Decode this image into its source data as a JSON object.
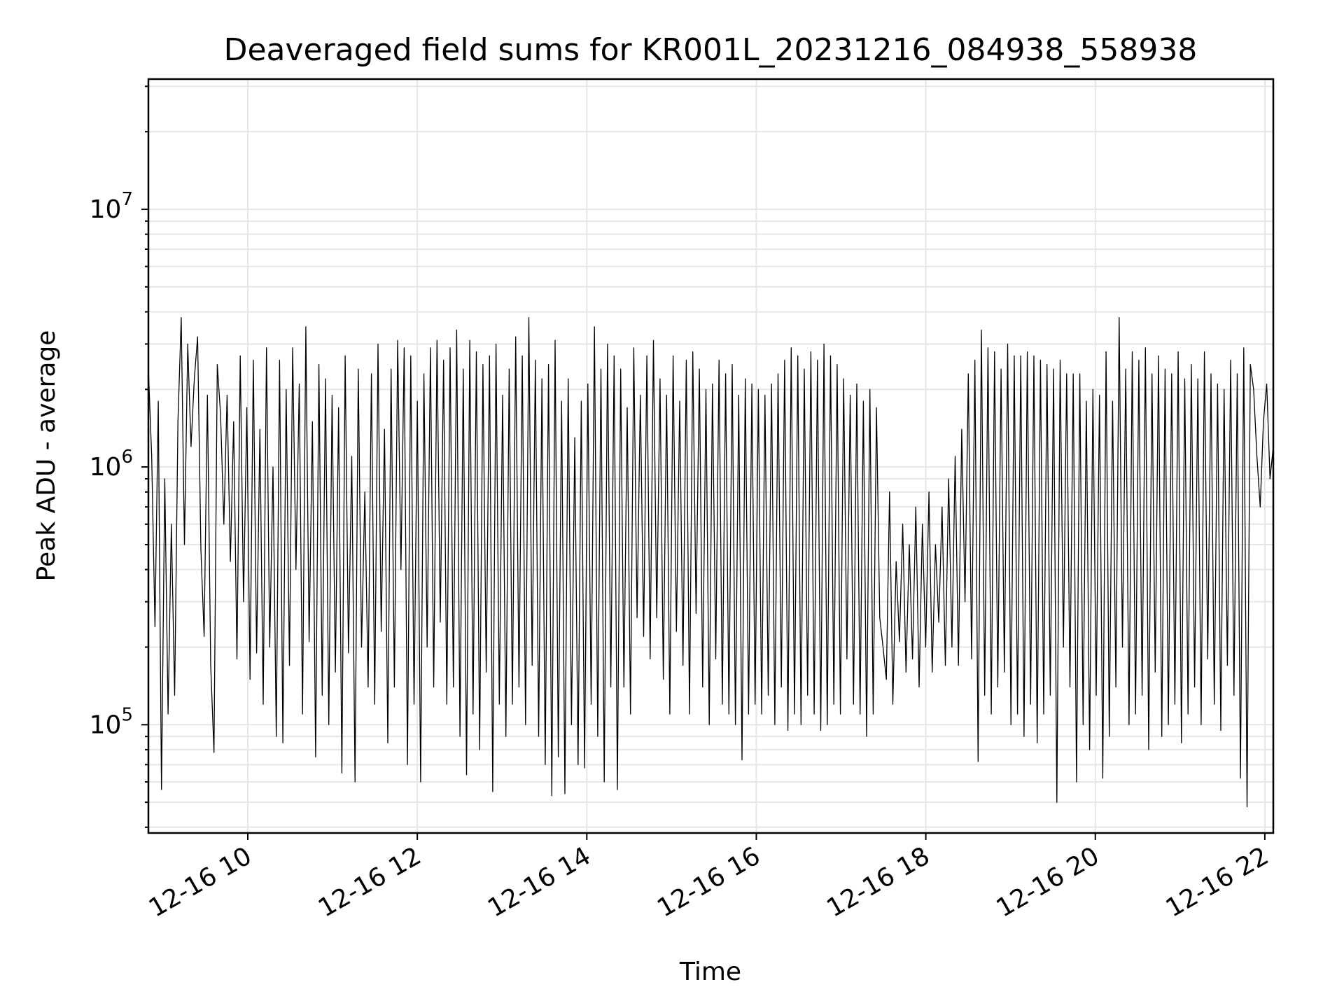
{
  "chart_data": {
    "type": "line",
    "title": "Deaveraged field sums for KR001L_20231216_084938_558938",
    "xlabel": "Time",
    "ylabel": "Peak ADU - average",
    "yscale": "log",
    "grid": true,
    "xlim": [
      "2023-12-16 08:49:38",
      "2023-12-16 22:06"
    ],
    "ylim": [
      38000,
      32000000
    ],
    "x_ticks": [
      "12-16 10",
      "12-16 12",
      "12-16 14",
      "12-16 16",
      "12-16 18",
      "12-16 20",
      "12-16 22"
    ],
    "y_ticks": [
      {
        "base": "10",
        "exp": "5",
        "value": 100000
      },
      {
        "base": "10",
        "exp": "6",
        "value": 1000000
      },
      {
        "base": "10",
        "exp": "7",
        "value": 10000000
      }
    ],
    "series": [
      {
        "color": "#000000",
        "x_start": "2023-12-16 08:49:38",
        "x_end": "2023-12-16 22:06:00",
        "values": [
          2400000,
          1100000,
          240000,
          1800000,
          56000,
          900000,
          110000,
          600000,
          130000,
          1500000,
          3800000,
          500000,
          3000000,
          1200000,
          2200000,
          3200000,
          480000,
          220000,
          1900000,
          170000,
          78000,
          2500000,
          1600000,
          600000,
          1900000,
          430000,
          1500000,
          180000,
          2700000,
          300000,
          1700000,
          150000,
          2600000,
          190000,
          1400000,
          120000,
          2900000,
          200000,
          1000000,
          90000,
          2600000,
          85000,
          2000000,
          170000,
          2900000,
          400000,
          2100000,
          110000,
          3500000,
          210000,
          1500000,
          75000,
          2500000,
          130000,
          2200000,
          100000,
          1900000,
          160000,
          1700000,
          65000,
          2700000,
          190000,
          1100000,
          60000,
          2400000,
          200000,
          800000,
          140000,
          2300000,
          120000,
          3000000,
          230000,
          1400000,
          85000,
          2400000,
          140000,
          3100000,
          400000,
          2900000,
          70000,
          2700000,
          120000,
          1800000,
          60000,
          2300000,
          200000,
          2900000,
          140000,
          3100000,
          250000,
          2600000,
          120000,
          2900000,
          140000,
          3400000,
          90000,
          2400000,
          64000,
          3100000,
          110000,
          2800000,
          80000,
          2500000,
          160000,
          2700000,
          55000,
          3000000,
          120000,
          1900000,
          90000,
          2400000,
          120000,
          3200000,
          140000,
          2700000,
          100000,
          3800000,
          170000,
          2600000,
          90000,
          2200000,
          70000,
          2500000,
          53000,
          3100000,
          75000,
          1800000,
          54000,
          2200000,
          100000,
          1300000,
          70000,
          1800000,
          68000,
          2100000,
          120000,
          3500000,
          90000,
          2400000,
          60000,
          3000000,
          140000,
          2700000,
          56000,
          2400000,
          140000,
          1700000,
          110000,
          2900000,
          260000,
          1900000,
          220000,
          2700000,
          180000,
          3100000,
          260000,
          2200000,
          150000,
          1900000,
          110000,
          2700000,
          230000,
          1800000,
          170000,
          2600000,
          110000,
          2800000,
          270000,
          2400000,
          140000,
          2000000,
          100000,
          2100000,
          180000,
          2600000,
          120000,
          2300000,
          110000,
          2500000,
          100000,
          1900000,
          73000,
          2200000,
          110000,
          2100000,
          120000,
          2000000,
          110000,
          1900000,
          130000,
          2100000,
          100000,
          2300000,
          140000,
          2600000,
          95000,
          2900000,
          110000,
          2700000,
          100000,
          2400000,
          130000,
          2800000,
          110000,
          2600000,
          95000,
          3000000,
          100000,
          2700000,
          120000,
          2500000,
          110000,
          2200000,
          180000,
          1900000,
          120000,
          2100000,
          110000,
          1800000,
          90000,
          2000000,
          110000,
          1700000,
          260000,
          200000,
          150000,
          800000,
          120000,
          430000,
          210000,
          600000,
          160000,
          500000,
          180000,
          700000,
          140000,
          600000,
          200000,
          800000,
          160000,
          500000,
          250000,
          700000,
          170000,
          900000,
          200000,
          1100000,
          170000,
          1400000,
          300000,
          2300000,
          180000,
          2600000,
          72000,
          3400000,
          130000,
          2900000,
          110000,
          2800000,
          140000,
          2400000,
          160000,
          3000000,
          100000,
          2700000,
          110000,
          2700000,
          90000,
          2800000,
          120000,
          2700000,
          85000,
          2600000,
          110000,
          2500000,
          130000,
          2400000,
          50000,
          2600000,
          200000,
          2300000,
          140000,
          2300000,
          60000,
          2300000,
          100000,
          1800000,
          80000,
          2000000,
          130000,
          1900000,
          62000,
          2800000,
          90000,
          1800000,
          140000,
          3800000,
          200000,
          2400000,
          100000,
          2800000,
          110000,
          2600000,
          130000,
          2900000,
          80000,
          2300000,
          160000,
          2700000,
          90000,
          2400000,
          100000,
          2300000,
          120000,
          2800000,
          85000,
          2200000,
          110000,
          2500000,
          140000,
          2200000,
          100000,
          2800000,
          180000,
          2300000,
          120000,
          2100000,
          95000,
          2000000,
          170000,
          2600000,
          130000,
          2300000,
          62000,
          2900000,
          48000,
          2500000,
          2000000,
          1100000,
          700000,
          1500000,
          2100000,
          900000,
          1200000
        ]
      }
    ]
  }
}
